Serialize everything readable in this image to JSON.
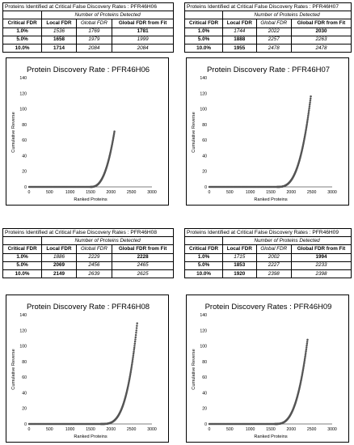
{
  "panels": [
    {
      "table": {
        "title": "Proteins Identified at Critical False Discovery Rates : PFR46H06",
        "subheader": "Number of Proteins Detected",
        "columns": [
          "Critical FDR",
          "Local FDR",
          "Global FDR",
          "Global FDR from Fit"
        ],
        "rows": [
          {
            "fdr": "1.0%",
            "local": "1536",
            "global": "1769",
            "fit": "1781",
            "bold": "fit"
          },
          {
            "fdr": "5.0%",
            "local": "1658",
            "global": "1979",
            "fit": "1999",
            "bold": "local"
          },
          {
            "fdr": "10.0%",
            "local": "1714",
            "global": "2084",
            "fit": "2084",
            "bold": "local"
          }
        ]
      }
    },
    {
      "table": {
        "title": "Proteins Identified at Critical False Discovery Rates : PFR46H07",
        "subheader": "Number of Proteins Detected",
        "columns": [
          "Critical FDR",
          "Local FDR",
          "Global FDR",
          "Global FDR from Fit"
        ],
        "rows": [
          {
            "fdr": "1.0%",
            "local": "1744",
            "global": "2022",
            "fit": "2030",
            "bold": "fit"
          },
          {
            "fdr": "5.0%",
            "local": "1888",
            "global": "2257",
            "fit": "2263",
            "bold": "local"
          },
          {
            "fdr": "10.0%",
            "local": "1955",
            "global": "2478",
            "fit": "2478",
            "bold": "local"
          }
        ]
      }
    },
    {
      "table": {
        "title": "Proteins Identified at Critical False Discovery Rates : PFR46H08",
        "subheader": "Number of Proteins Detected",
        "columns": [
          "Critical FDR",
          "Local FDR",
          "Global FDR",
          "Global FDR from Fit"
        ],
        "rows": [
          {
            "fdr": "1.0%",
            "local": "1886",
            "global": "2229",
            "fit": "2228",
            "bold": "fit"
          },
          {
            "fdr": "5.0%",
            "local": "2069",
            "global": "2456",
            "fit": "2465",
            "bold": "local"
          },
          {
            "fdr": "10.0%",
            "local": "2149",
            "global": "2639",
            "fit": "2625",
            "bold": "local"
          }
        ]
      }
    },
    {
      "table": {
        "title": "Proteins Identified at Critical False Discovery Rates : PFR46H09",
        "subheader": "Number of Proteins Detected",
        "columns": [
          "Critical FDR",
          "Local FDR",
          "Global FDR",
          "Global FDR from Fit"
        ],
        "rows": [
          {
            "fdr": "1.0%",
            "local": "1715",
            "global": "2002",
            "fit": "1994",
            "bold": "fit"
          },
          {
            "fdr": "5.0%",
            "local": "1853",
            "global": "2227",
            "fit": "2233",
            "bold": "local"
          },
          {
            "fdr": "10.0%",
            "local": "1920",
            "global": "2398",
            "fit": "2398",
            "bold": "local"
          }
        ]
      }
    }
  ],
  "chart_data": [
    {
      "type": "scatter",
      "title": "Protein Discovery Rate : PFR46H06",
      "xlabel": "Ranked Proteins",
      "ylabel": "Cumulative Reverse",
      "xlim": [
        0,
        3000
      ],
      "ylim": [
        0,
        140
      ],
      "xticks": [
        0,
        500,
        1000,
        1500,
        2000,
        2500,
        3000
      ],
      "yticks": [
        0,
        20,
        40,
        60,
        80,
        100,
        120,
        140
      ],
      "point_color": "#555555",
      "curve": {
        "start_x": 1500,
        "end_x": 2084,
        "end_y": 71,
        "power": 2.6,
        "count": 95
      }
    },
    {
      "type": "scatter",
      "title": "Protein Discovery Rate : PFR46H07",
      "xlabel": "Ranked Proteins",
      "ylabel": "Cumulative Reverse",
      "xlim": [
        0,
        3000
      ],
      "ylim": [
        0,
        140
      ],
      "xticks": [
        0,
        500,
        1000,
        1500,
        2000,
        2500,
        3000
      ],
      "yticks": [
        0,
        20,
        40,
        60,
        80,
        100,
        120,
        140
      ],
      "point_color": "#555555",
      "curve": {
        "start_x": 1650,
        "end_x": 2478,
        "end_y": 116,
        "power": 3.0,
        "count": 130
      }
    },
    {
      "type": "scatter",
      "title": "Protein Discovery Rate : PFR46H08",
      "xlabel": "Ranked Proteins",
      "ylabel": "Cumulative Reverse",
      "xlim": [
        0,
        3000
      ],
      "ylim": [
        0,
        140
      ],
      "xticks": [
        0,
        500,
        1000,
        1500,
        2000,
        2500,
        3000
      ],
      "yticks": [
        0,
        20,
        40,
        60,
        80,
        100,
        120,
        140
      ],
      "point_color": "#555555",
      "curve": {
        "start_x": 1750,
        "end_x": 2639,
        "end_y": 129,
        "power": 3.4,
        "count": 140
      }
    },
    {
      "type": "scatter",
      "title": "Protein Discovery Rates : PFR46H09",
      "xlabel": "Ranked Proteins",
      "ylabel": "Cumulative Reverse",
      "xlim": [
        0,
        3000
      ],
      "ylim": [
        0,
        140
      ],
      "xticks": [
        0,
        500,
        1000,
        1500,
        2000,
        2500,
        3000
      ],
      "yticks": [
        0,
        20,
        40,
        60,
        80,
        100,
        120,
        140
      ],
      "point_color": "#555555",
      "curve": {
        "start_x": 1600,
        "end_x": 2398,
        "end_y": 108,
        "power": 3.0,
        "count": 125
      }
    }
  ]
}
